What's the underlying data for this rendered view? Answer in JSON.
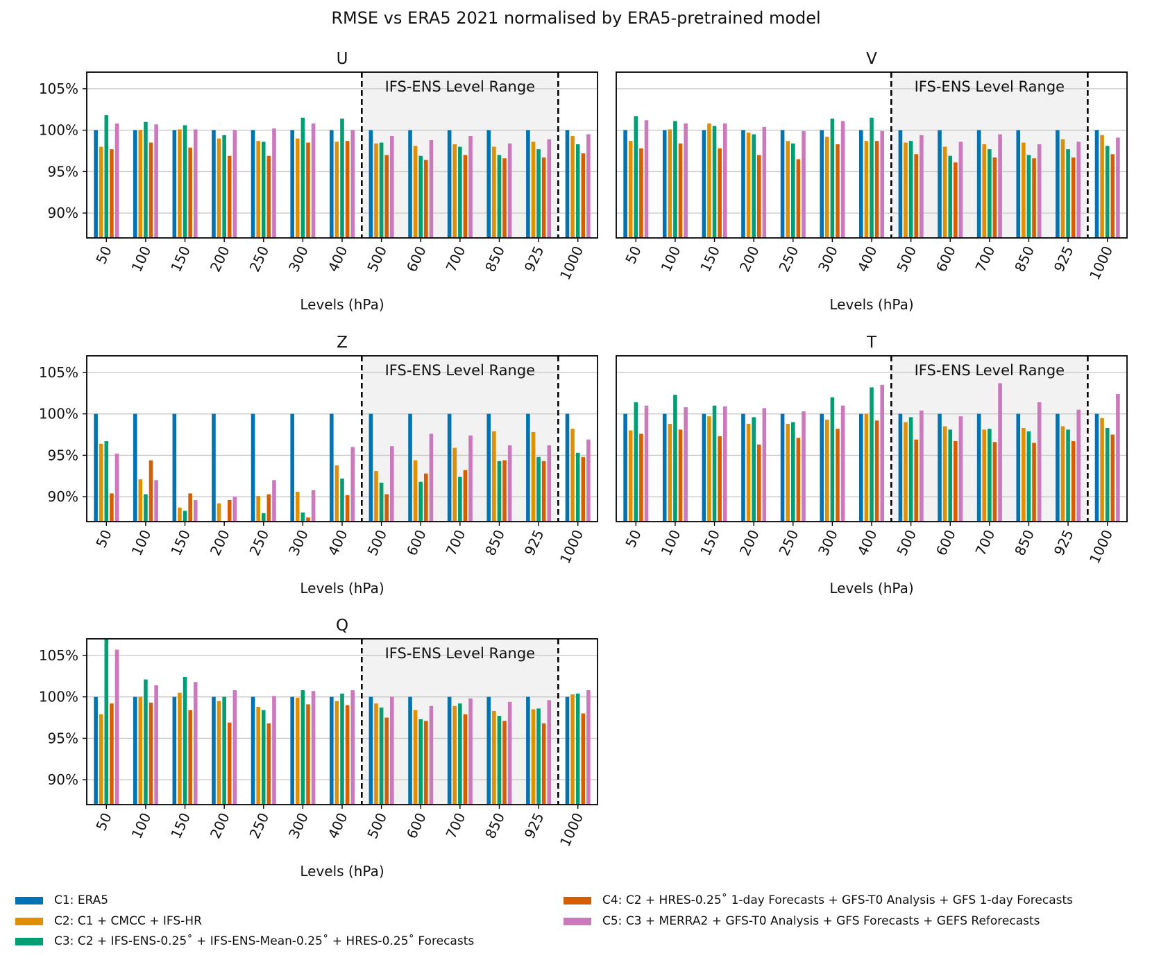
{
  "chart_data": {
    "type": "bar",
    "title": "RMSE vs ERA5 2021 normalised by ERA5-pretrained model",
    "xlabel": "Levels (hPa)",
    "categories": [
      "50",
      "100",
      "150",
      "200",
      "250",
      "300",
      "400",
      "500",
      "600",
      "700",
      "850",
      "925",
      "1000"
    ],
    "ylim": [
      87,
      107
    ],
    "yticks": [
      90,
      95,
      100,
      105
    ],
    "ytick_labels": [
      "90%",
      "95%",
      "100%",
      "105%"
    ],
    "shaded_label": "IFS-ENS Level Range",
    "shaded_range": [
      "500",
      "925"
    ],
    "series_names": [
      "C1: ERA5",
      "C2: C1 + CMCC + IFS-HR",
      "C3: C2 + IFS-ENS-0.25˚ + IFS-ENS-Mean-0.25˚ + HRES-0.25˚ Forecasts",
      "C4: C2 + HRES-0.25˚ 1-day Forecasts + GFS-T0 Analysis + GFS 1-day Forecasts",
      "C5: C3 + MERRA2 + GFS-T0 Analysis + GFS Forecasts + GEFS Reforecasts"
    ],
    "series_colors": [
      "#0173b2",
      "#de8f05",
      "#029e73",
      "#d55e00",
      "#cc78bc"
    ],
    "panels": [
      {
        "name": "U",
        "series": [
          {
            "values": [
              100,
              100,
              100,
              100,
              100,
              100,
              100,
              100,
              100,
              100,
              100,
              100,
              100
            ]
          },
          {
            "values": [
              98.0,
              100,
              100.1,
              99.0,
              98.7,
              99.0,
              98.6,
              98.4,
              98.1,
              98.3,
              98.0,
              98.6,
              99.3
            ]
          },
          {
            "values": [
              101.8,
              101.0,
              100.6,
              99.4,
              98.6,
              101.5,
              101.4,
              98.5,
              96.9,
              98.0,
              97.0,
              97.7,
              98.3
            ]
          },
          {
            "values": [
              97.7,
              98.5,
              97.9,
              96.9,
              96.9,
              98.5,
              98.7,
              97.0,
              96.4,
              97.0,
              96.6,
              96.7,
              97.2
            ]
          },
          {
            "values": [
              100.8,
              100.7,
              100.1,
              100.0,
              100.2,
              100.8,
              100.0,
              99.3,
              98.8,
              99.3,
              98.4,
              98.9,
              99.5
            ]
          }
        ]
      },
      {
        "name": "V",
        "series": [
          {
            "values": [
              100,
              100,
              100,
              100,
              100,
              100,
              100,
              100,
              100,
              100,
              100,
              100,
              100
            ]
          },
          {
            "values": [
              98.7,
              100.1,
              100.8,
              99.7,
              98.7,
              99.2,
              98.7,
              98.5,
              98.0,
              98.3,
              98.5,
              98.9,
              99.4
            ]
          },
          {
            "values": [
              101.7,
              101.1,
              100.5,
              99.5,
              98.4,
              101.4,
              101.5,
              98.7,
              96.9,
              97.7,
              97.0,
              97.7,
              98.1
            ]
          },
          {
            "values": [
              97.8,
              98.4,
              97.8,
              97.0,
              96.5,
              98.3,
              98.7,
              97.1,
              96.1,
              96.7,
              96.6,
              96.7,
              97.1
            ]
          },
          {
            "values": [
              101.2,
              100.8,
              100.8,
              100.4,
              99.9,
              101.1,
              99.9,
              99.4,
              98.6,
              99.5,
              98.3,
              98.6,
              99.1
            ]
          }
        ]
      },
      {
        "name": "Z",
        "series": [
          {
            "values": [
              100,
              100,
              100,
              100,
              100,
              100,
              100,
              100,
              100,
              100,
              100,
              100,
              100
            ]
          },
          {
            "values": [
              96.4,
              92.1,
              88.7,
              89.2,
              90.1,
              90.6,
              93.8,
              93.1,
              94.4,
              95.9,
              97.9,
              97.8,
              98.2
            ]
          },
          {
            "values": [
              96.7,
              90.3,
              88.3,
              87.0,
              88.0,
              88.1,
              92.2,
              91.7,
              91.8,
              92.4,
              94.3,
              94.8,
              95.3
            ]
          },
          {
            "values": [
              90.4,
              94.4,
              90.4,
              89.6,
              90.3,
              87.5,
              90.2,
              90.3,
              92.8,
              93.2,
              94.4,
              94.3,
              94.8
            ]
          },
          {
            "values": [
              95.2,
              92.0,
              89.6,
              90.0,
              92.0,
              90.8,
              96.0,
              96.1,
              97.6,
              97.4,
              96.2,
              96.2,
              96.9
            ]
          }
        ]
      },
      {
        "name": "T",
        "series": [
          {
            "values": [
              100,
              100,
              100,
              100,
              100,
              100,
              100,
              100,
              100,
              100,
              100,
              100,
              100
            ]
          },
          {
            "values": [
              98.0,
              98.8,
              99.7,
              98.8,
              98.8,
              99.3,
              100,
              99.0,
              98.5,
              98.1,
              98.3,
              98.5,
              99.5
            ]
          },
          {
            "values": [
              101.4,
              102.3,
              101.0,
              99.6,
              99.0,
              102.0,
              103.2,
              99.6,
              98.1,
              98.2,
              97.9,
              98.1,
              98.3
            ]
          },
          {
            "values": [
              97.6,
              98.1,
              97.3,
              96.3,
              97.1,
              98.2,
              99.2,
              96.9,
              96.7,
              96.6,
              96.5,
              96.7,
              97.5
            ]
          },
          {
            "values": [
              101.0,
              100.8,
              100.9,
              100.7,
              100.3,
              101.0,
              103.5,
              100.4,
              99.7,
              103.7,
              101.4,
              100.5,
              102.4
            ]
          }
        ]
      },
      {
        "name": "Q",
        "series": [
          {
            "values": [
              100,
              100,
              100,
              100,
              100,
              100,
              100,
              100,
              100,
              100,
              100,
              100,
              100
            ]
          },
          {
            "values": [
              97.9,
              100,
              100.5,
              99.5,
              98.8,
              99.9,
              99.5,
              99.2,
              98.4,
              98.9,
              98.3,
              98.5,
              100.3
            ]
          },
          {
            "values": [
              107.0,
              102.1,
              102.4,
              100.0,
              98.4,
              100.8,
              100.4,
              98.7,
              97.3,
              99.2,
              97.7,
              98.6,
              100.4
            ]
          },
          {
            "values": [
              99.2,
              99.3,
              98.4,
              96.9,
              96.8,
              99.1,
              99.0,
              97.5,
              97.1,
              97.9,
              97.1,
              96.8,
              98.0
            ]
          },
          {
            "values": [
              105.7,
              101.4,
              101.8,
              100.8,
              100.1,
              100.7,
              100.8,
              100.0,
              98.9,
              99.8,
              99.4,
              99.6,
              100.8
            ]
          }
        ]
      }
    ]
  }
}
